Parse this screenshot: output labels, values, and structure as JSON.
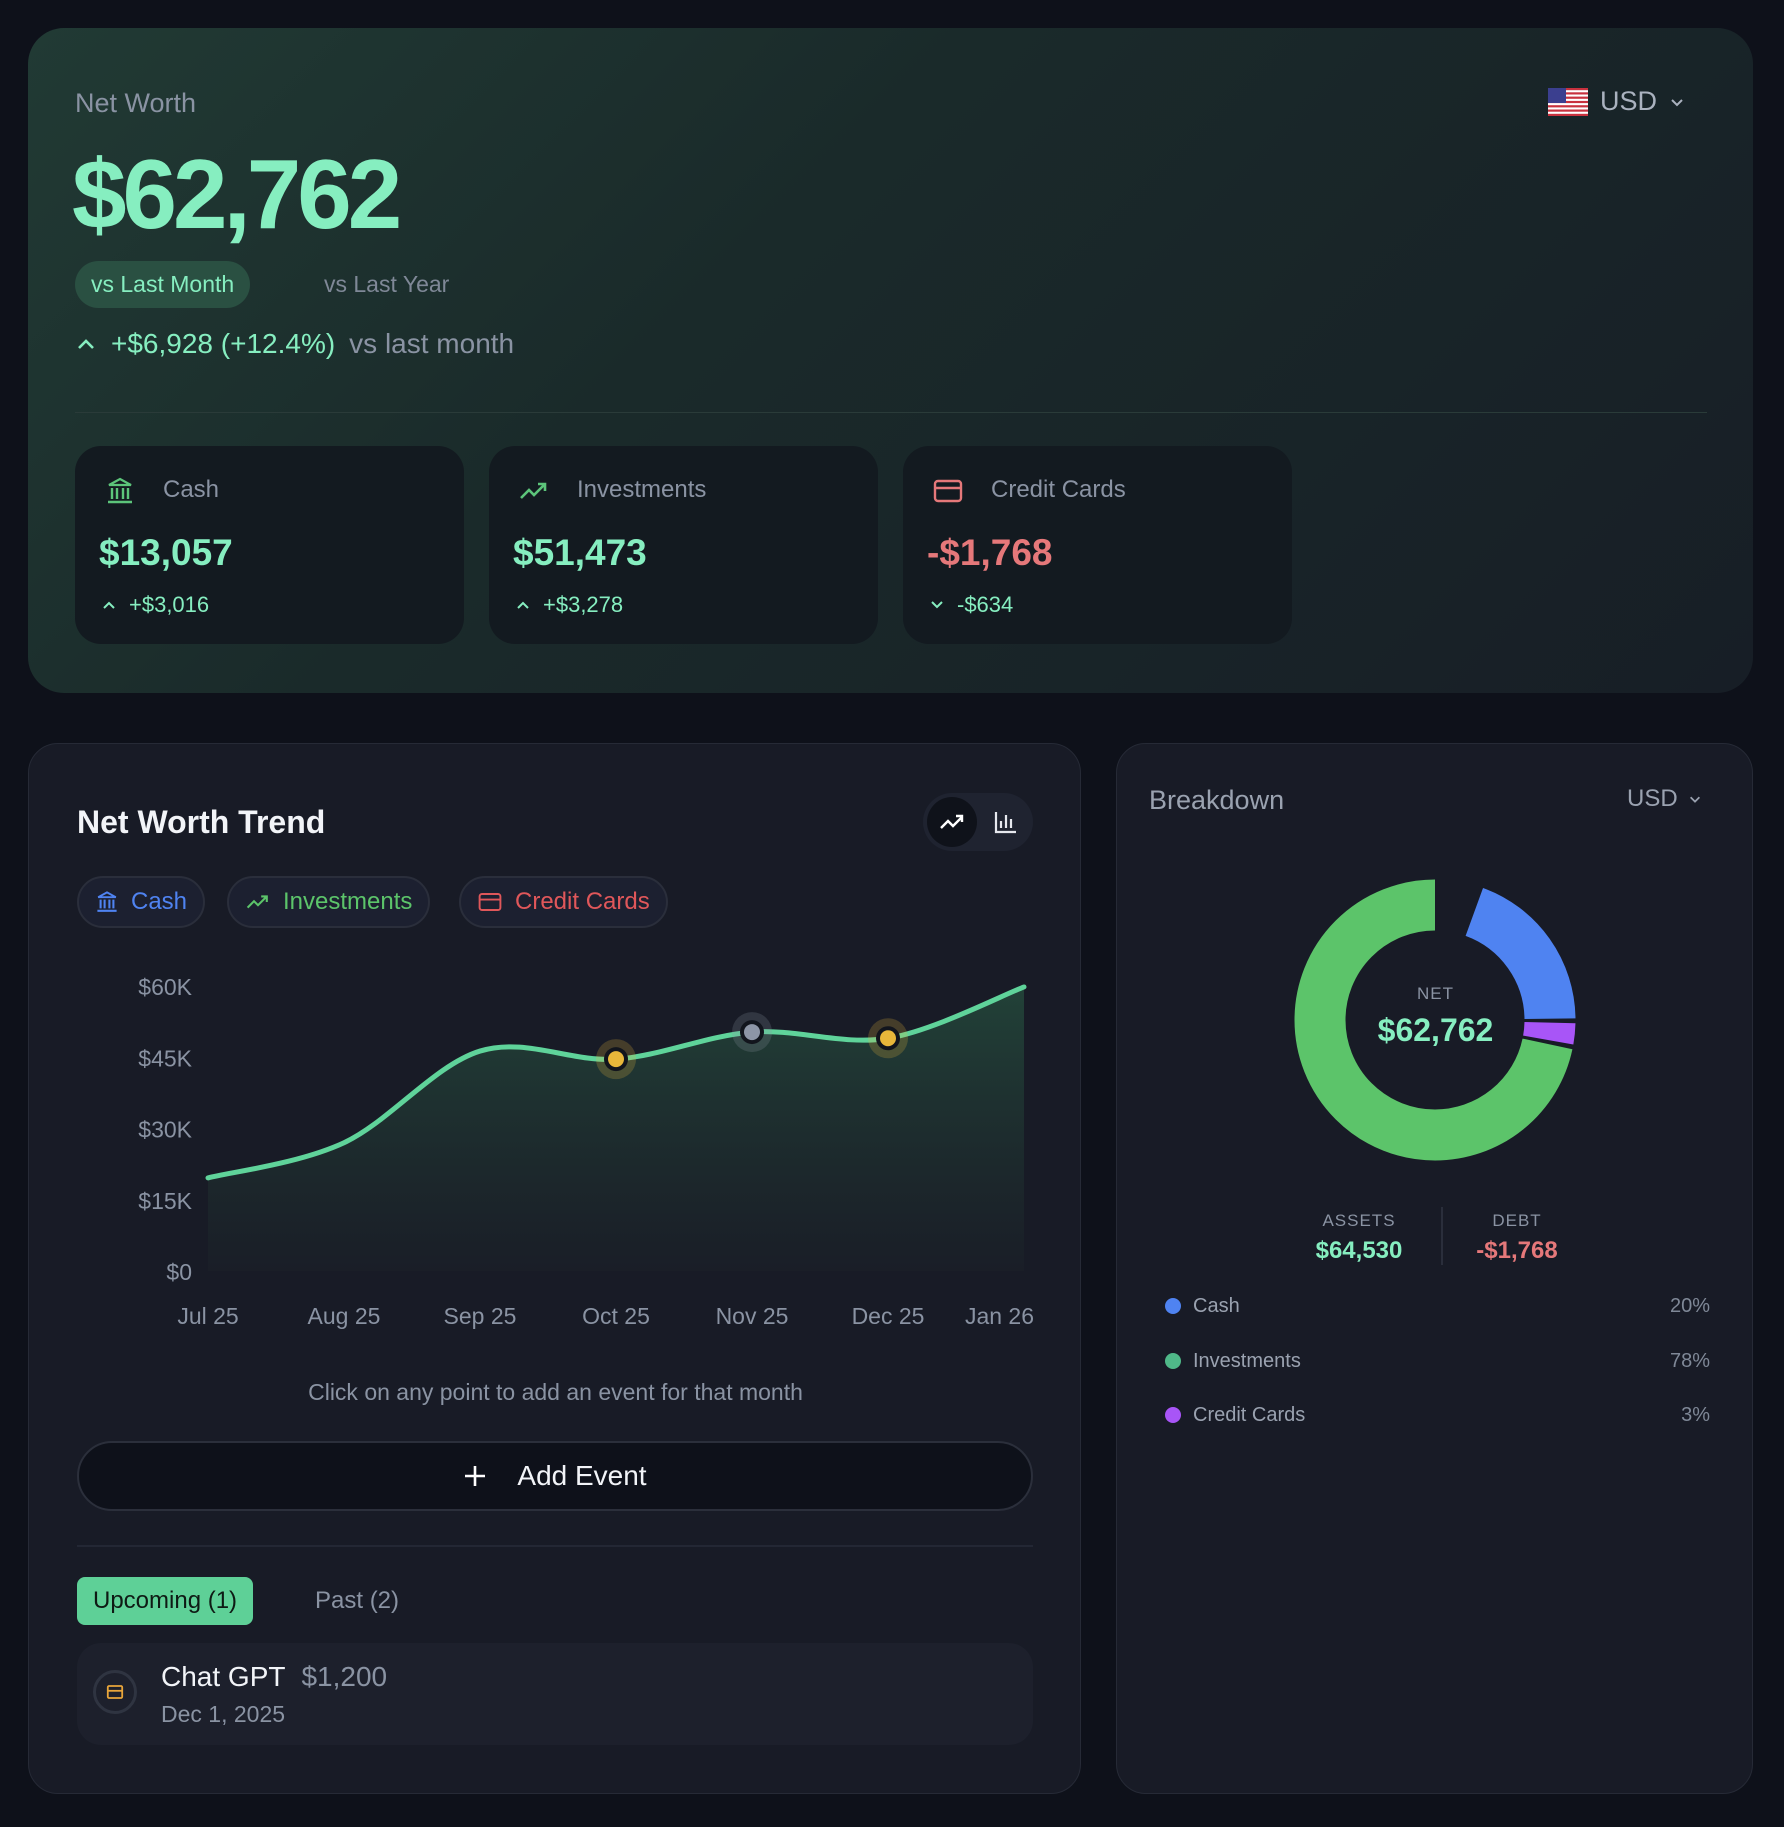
{
  "summary": {
    "title": "Net Worth",
    "value": "$62,762",
    "currency": "USD",
    "currency_flag": "us-flag-icon",
    "compare_tabs": [
      "vs Last Month",
      "vs Last Year"
    ],
    "active_compare": "vs Last Month",
    "change": "+$6,928 (+12.4%)",
    "change_suffix": "vs last month",
    "accounts": [
      {
        "label": "Cash",
        "value": "$13,057",
        "delta": "+$3,016",
        "direction": "up",
        "icon": "bank-icon"
      },
      {
        "label": "Investments",
        "value": "$51,473",
        "delta": "+$3,278",
        "direction": "up",
        "icon": "trending-up-icon"
      },
      {
        "label": "Credit Cards",
        "value": "-$1,768",
        "delta": "-$634",
        "direction": "down",
        "icon": "credit-card-icon"
      }
    ]
  },
  "trend": {
    "title": "Net Worth Trend",
    "view_modes": [
      "line",
      "bar"
    ],
    "active_view": "line",
    "filters": [
      {
        "label": "Cash",
        "color": "#4f83f1",
        "icon": "bank-icon"
      },
      {
        "label": "Investments",
        "color": "#5cc46a",
        "icon": "trending-up-icon"
      },
      {
        "label": "Credit Cards",
        "color": "#e0575a",
        "icon": "credit-card-icon"
      }
    ],
    "hint": "Click on any point to add an event for that month",
    "add_event_label": "Add Event",
    "tabs": [
      "Upcoming (1)",
      "Past (2)"
    ],
    "active_tab": "Upcoming (1)",
    "events": [
      {
        "title": "Chat GPT",
        "amount": "$1,200",
        "date": "Dec 1, 2025",
        "icon": "credit-card-icon"
      }
    ]
  },
  "chart_data": {
    "type": "area",
    "categories": [
      "Jul 25",
      "Aug 25",
      "Sep 25",
      "Oct 25",
      "Nov 25",
      "Dec 25",
      "Jan 26"
    ],
    "values": [
      19600,
      27000,
      46300,
      44600,
      50300,
      49000,
      59800
    ],
    "ylim": [
      0,
      60000
    ],
    "yticks": [
      "$60K",
      "$45K",
      "$30K",
      "$15K",
      "$0"
    ],
    "ytick_values": [
      60000,
      45000,
      30000,
      15000,
      0
    ],
    "grid": false,
    "line_color": "#5fd39a",
    "event_markers": [
      {
        "category": "Oct 25",
        "color": "#e8b73a"
      },
      {
        "category": "Nov 25",
        "color": "#8d95a6"
      },
      {
        "category": "Dec 25",
        "color": "#e8b73a"
      }
    ]
  },
  "breakdown": {
    "title": "Breakdown",
    "currency": "USD",
    "center_label": "NET",
    "center_value": "$62,762",
    "assets_label": "ASSETS",
    "assets_value": "$64,530",
    "debt_label": "DEBT",
    "debt_value": "-$1,768",
    "donut": {
      "type": "pie",
      "slices": [
        {
          "label": "Cash",
          "percent": 20,
          "pct_text": "20%",
          "color": "#4f83f1"
        },
        {
          "label": "Investments",
          "percent": 78,
          "pct_text": "78%",
          "color": "#5cc46a"
        },
        {
          "label": "Credit Cards",
          "percent": 3,
          "pct_text": "3%",
          "color": "#a855f7"
        }
      ]
    }
  }
}
